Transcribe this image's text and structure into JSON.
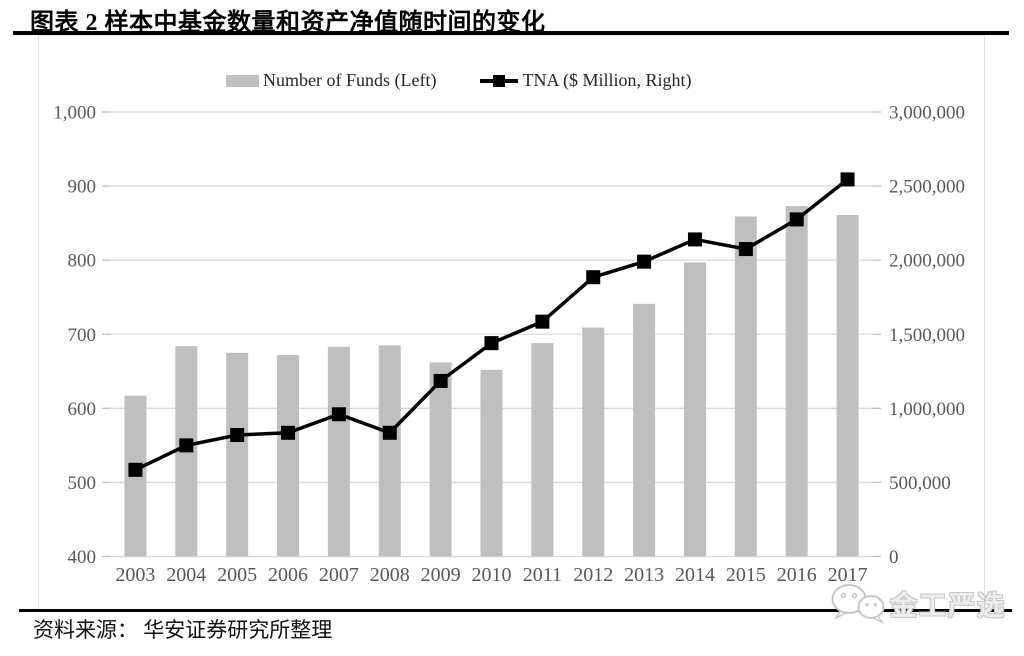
{
  "title": "图表 2 样本中基金数量和资产净值随时间的变化",
  "source": "资料来源： 华安证券研究所整理",
  "watermark": "金工严选",
  "legend": [
    {
      "label": "Number of Funds (Left)",
      "type": "bar",
      "color": "#bfbfbf"
    },
    {
      "label": "TNA ($ Million, Right)",
      "type": "line",
      "color": "#000000"
    }
  ],
  "colors": {
    "bar": "#bfbfbf",
    "line": "#000000",
    "grid": "#d9d9d9",
    "tick": "#c0c0c0",
    "axis_text": "#595959",
    "rule": "#000000"
  },
  "chart_data": {
    "type": "bar",
    "subtype": "bar+line combo, dual axis",
    "categories": [
      "2003",
      "2004",
      "2005",
      "2006",
      "2007",
      "2008",
      "2009",
      "2010",
      "2011",
      "2012",
      "2013",
      "2014",
      "2015",
      "2016",
      "2017"
    ],
    "series": [
      {
        "name": "Number of Funds (Left)",
        "type": "bar",
        "axis": "left",
        "values": [
          617,
          684,
          675,
          672,
          683,
          685,
          662,
          652,
          688,
          709,
          741,
          797,
          859,
          873,
          861
        ]
      },
      {
        "name": "TNA ($ Million, Right)",
        "type": "line",
        "axis": "right",
        "values": [
          585000,
          750000,
          820000,
          835000,
          960000,
          835000,
          1185000,
          1440000,
          1585000,
          1885000,
          1990000,
          2140000,
          2075000,
          2275000,
          2545000
        ]
      }
    ],
    "left_axis": {
      "min": 400,
      "max": 1000,
      "step": 100,
      "ticks": [
        "400",
        "500",
        "600",
        "700",
        "800",
        "900",
        "1,000"
      ]
    },
    "right_axis": {
      "min": 0,
      "max": 3000000,
      "step": 500000,
      "ticks": [
        "0",
        "500,000",
        "1,000,000",
        "1,500,000",
        "2,000,000",
        "2,500,000",
        "3,000,000"
      ]
    },
    "grid": true,
    "legend_position": "top-center"
  }
}
